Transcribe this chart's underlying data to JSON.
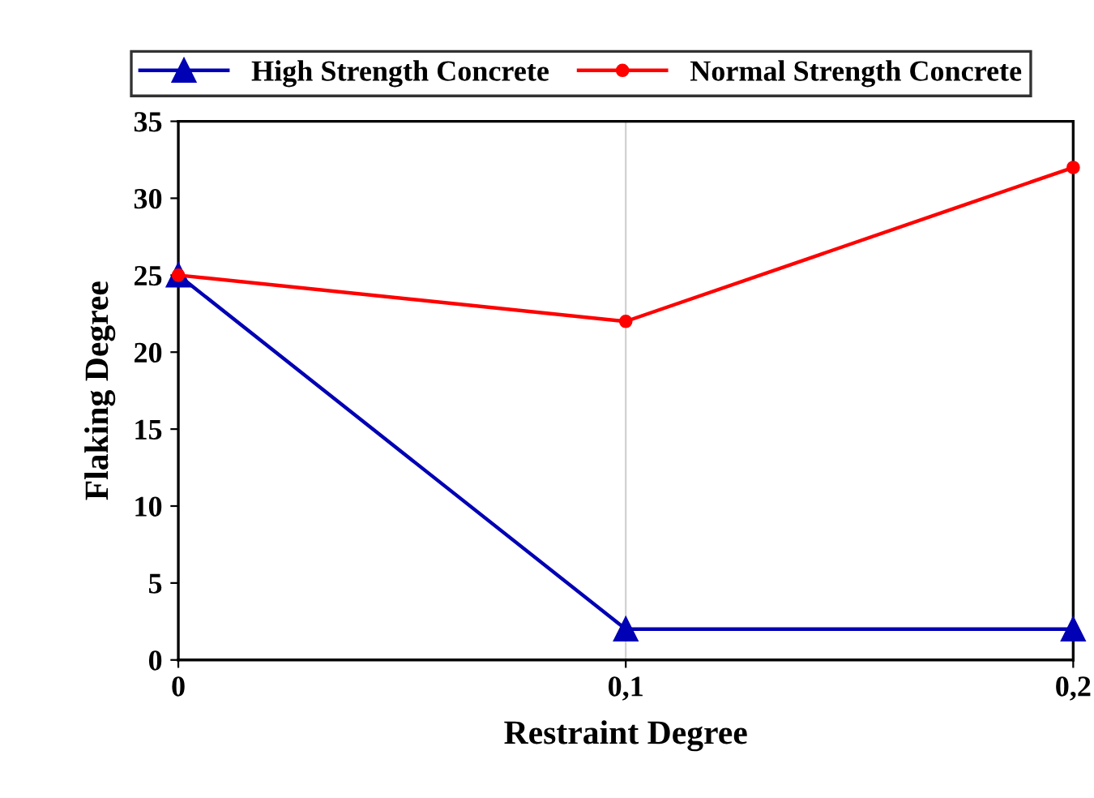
{
  "chart_data": {
    "type": "line",
    "xlabel": "Restraint Degree",
    "ylabel": "Flaking Degree",
    "x": [
      0,
      0.1,
      0.2
    ],
    "series": [
      {
        "name": "High Strength Concrete",
        "color": "#0000b4",
        "marker": "triangle",
        "values": [
          25,
          2,
          2
        ]
      },
      {
        "name": "Normal Strength Concrete",
        "color": "#ff0000",
        "marker": "circle",
        "values": [
          25,
          22,
          32
        ]
      }
    ],
    "xlim": [
      0,
      0.2
    ],
    "xticks": [
      0,
      {
        "value": 0.1,
        "label": "0,1"
      },
      {
        "value": 0.2,
        "label": "0,2"
      }
    ],
    "ylim": [
      0,
      35
    ],
    "yticks": [
      0,
      5,
      10,
      15,
      20,
      25,
      30,
      35
    ],
    "grid": "x",
    "legend": "top",
    "line_style": "solid"
  }
}
